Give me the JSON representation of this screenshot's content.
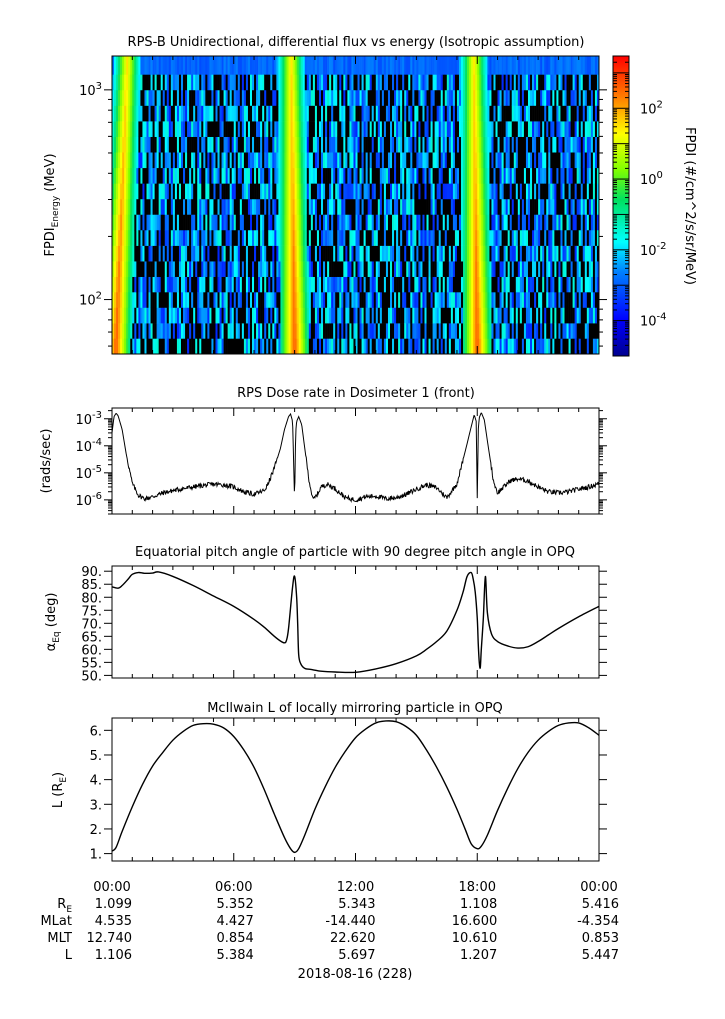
{
  "panels": {
    "spectrogram": {
      "title": "RPS-B  Unidirectional, differential flux vs energy (Isotropic assumption)",
      "ylabel_main": "FPDI",
      "ylabel_sub": "Energy",
      "ylabel_unit": " (MeV)",
      "ytick_labels": [
        {
          "base": "10",
          "exp": "3"
        },
        {
          "base": "10",
          "exp": "2"
        }
      ],
      "colorbar_label": "FPDI (#/cm^2/s/sr/MeV)",
      "colorbar_ticks": [
        {
          "base": "10",
          "exp": "2"
        },
        {
          "base": "10",
          "exp": "0"
        },
        {
          "base": "10",
          "exp": "-2"
        },
        {
          "base": "10",
          "exp": "-4"
        }
      ]
    },
    "dose": {
      "title": "RPS  Dose rate in Dosimeter 1 (front)",
      "ylabel": "(rads/sec)",
      "ytick_labels": [
        {
          "base": "10",
          "exp": "-3"
        },
        {
          "base": "10",
          "exp": "-4"
        },
        {
          "base": "10",
          "exp": "-5"
        },
        {
          "base": "10",
          "exp": "-6"
        }
      ]
    },
    "pitch": {
      "title": "Equatorial pitch angle of particle with 90 degree pitch angle in OPQ",
      "ylabel_main": "α",
      "ylabel_sub": "Eq",
      "ylabel_unit": " (deg)",
      "ytick_labels": [
        "90.",
        "85.",
        "80.",
        "75.",
        "70.",
        "65.",
        "60.",
        "55.",
        "50."
      ]
    },
    "lshell": {
      "title": "McIlwain L of locally mirroring particle in OPQ",
      "ylabel_main": "L (R",
      "ylabel_sub": "E",
      "ylabel_unit": ")",
      "ytick_labels": [
        "6.",
        "5.",
        "4.",
        "3.",
        "2.",
        "1."
      ]
    }
  },
  "ephemeris": {
    "time_labels": [
      "00:00",
      "06:00",
      "12:00",
      "18:00",
      "00:00"
    ],
    "rows": [
      {
        "label": "R",
        "label_sub": "E",
        "values": [
          "1.099",
          "5.352",
          "5.343",
          "1.108",
          "5.416"
        ]
      },
      {
        "label": "MLat",
        "label_sub": "",
        "values": [
          "4.535",
          "4.427",
          "-14.440",
          "16.600",
          "-4.354"
        ]
      },
      {
        "label": "MLT",
        "label_sub": "",
        "values": [
          "12.740",
          "0.854",
          "22.620",
          "10.610",
          "0.853"
        ]
      },
      {
        "label": "L",
        "label_sub": "",
        "values": [
          "1.106",
          "5.384",
          "5.697",
          "1.207",
          "5.447"
        ]
      }
    ],
    "date_label": "2018-08-16 (228)"
  },
  "chart_data": [
    {
      "type": "heatmap",
      "title": "RPS-B  Unidirectional, differential flux vs energy (Isotropic assumption)",
      "xlabel": "",
      "ylabel": "FPDI Energy (MeV)",
      "x_range_hours": [
        0,
        24
      ],
      "ylim": [
        55,
        1450
      ],
      "y_scale": "log",
      "zlabel": "FPDI (#/cm^2/s/sr/MeV)",
      "zlim": [
        1e-05,
        3000
      ],
      "z_scale": "log",
      "colormap": "rainbow",
      "energy_channels": [
        60,
        71,
        84,
        100,
        118,
        140,
        166,
        197,
        234,
        277,
        329,
        390,
        463,
        549,
        651,
        773,
        917,
        1088,
        1290
      ],
      "flux_peaks": [
        {
          "time_hr": 0.2,
          "peak_flux": 500
        },
        {
          "time_hr": 9.0,
          "peak_flux": 500
        },
        {
          "time_hr": 18.0,
          "peak_flux": 500
        }
      ],
      "background_flux": [
        0.0,
        0.03
      ]
    },
    {
      "type": "line",
      "title": "RPS  Dose rate in Dosimeter 1 (front)",
      "xlabel": "",
      "ylabel": "(rads/sec)",
      "y_scale": "log",
      "ylim": [
        3e-07,
        0.0025
      ],
      "x_range_hours": [
        0,
        24
      ],
      "series": [
        {
          "x": [
            0.0,
            0.1,
            0.2,
            0.3,
            0.5,
            0.7,
            1.0,
            1.3,
            1.6,
            2.0,
            2.5,
            3.0,
            3.5,
            4.0,
            4.5,
            5.0,
            5.5,
            6.0,
            6.5,
            7.0,
            7.5,
            7.7,
            8.0,
            8.3,
            8.5,
            8.7,
            8.8,
            8.9,
            9.0,
            9.05,
            9.1,
            9.2,
            9.35,
            9.5,
            9.7,
            9.9,
            10.1,
            10.3,
            10.6,
            11.0,
            11.5,
            12.0,
            12.5,
            13.0,
            13.5,
            14.0,
            14.5,
            15.0,
            15.5,
            16.0,
            16.5,
            17.0,
            17.3,
            17.5,
            17.7,
            17.85,
            17.95,
            18.0,
            18.05,
            18.1,
            18.2,
            18.35,
            18.5,
            18.8,
            19.0,
            19.2,
            19.6,
            20.0,
            20.5,
            21.0,
            21.5,
            22.0,
            22.5,
            23.0,
            23.5,
            24.0
          ],
          "y": [
            0.0003,
            0.0012,
            0.0016,
            0.0013,
            0.0004,
            5e-05,
            4e-06,
            1.5e-06,
            1.1e-06,
            1.3e-06,
            1.8e-06,
            2.2e-06,
            2.6e-06,
            3e-06,
            3.4e-06,
            3.8e-06,
            3.6e-06,
            3e-06,
            2e-06,
            1.6e-06,
            2.2e-06,
            4e-06,
            1.5e-05,
            8e-05,
            0.0004,
            0.0012,
            0.0015,
            0.0008,
            1e-06,
            0.0003,
            0.0008,
            0.0012,
            0.0006,
            8e-05,
            6e-06,
            1e-06,
            1.5e-06,
            3e-06,
            3.8e-06,
            2.6e-06,
            1.2e-06,
            1e-06,
            1.3e-06,
            1.4e-06,
            1.1e-06,
            1.2e-06,
            1.6e-06,
            2.5e-06,
            3.6e-06,
            2.8e-06,
            1.2e-06,
            4e-06,
            3e-05,
            0.00012,
            0.0005,
            0.0014,
            0.0008,
            1e-06,
            0.0004,
            0.0011,
            0.0017,
            0.0009,
            0.00015,
            5e-06,
            1.8e-06,
            2.5e-06,
            5e-06,
            6e-06,
            5e-06,
            3e-06,
            2e-06,
            1.8e-06,
            2e-06,
            2.5e-06,
            3e-06,
            4e-06
          ]
        }
      ]
    },
    {
      "type": "line",
      "title": "Equatorial pitch angle of particle with 90 degree pitch angle in OPQ",
      "xlabel": "",
      "ylabel": "αEq (deg)",
      "ylim": [
        49,
        92
      ],
      "x_range_hours": [
        0,
        24
      ],
      "series": [
        {
          "x": [
            0.0,
            0.3,
            0.5,
            0.8,
            1.0,
            1.3,
            1.6,
            2.0,
            2.3,
            3.0,
            4.0,
            5.0,
            6.0,
            7.0,
            7.5,
            8.0,
            8.3,
            8.5,
            8.6,
            8.7,
            8.9,
            9.0,
            9.1,
            9.15,
            9.2,
            9.3,
            9.5,
            9.8,
            10.0,
            10.3,
            11.0,
            12.0,
            13.0,
            14.0,
            15.0,
            15.5,
            16.0,
            16.5,
            17.0,
            17.3,
            17.5,
            17.7,
            17.8,
            17.9,
            18.0,
            18.05,
            18.1,
            18.15,
            18.2,
            18.3,
            18.4,
            18.5,
            18.7,
            19.0,
            19.5,
            20.0,
            20.5,
            21.0,
            21.5,
            22.0,
            23.0,
            24.0
          ],
          "y": [
            84,
            83.5,
            84.5,
            87,
            88.8,
            89.5,
            89.2,
            89.3,
            89.7,
            88,
            84.5,
            80.5,
            76.5,
            71.5,
            68.5,
            65,
            63.2,
            62.5,
            63.5,
            68,
            84,
            88,
            80,
            70,
            58,
            54.5,
            52.7,
            52.3,
            52.0,
            51.6,
            51.3,
            51.2,
            52.5,
            54.5,
            57.5,
            60,
            63,
            67,
            75,
            82,
            88,
            89.5,
            87,
            82,
            72,
            62,
            55,
            53,
            60,
            72,
            88,
            74,
            66,
            63,
            61.3,
            60.5,
            61,
            63,
            65.5,
            68,
            72.5,
            76.5
          ]
        }
      ]
    },
    {
      "type": "line",
      "title": "McIlwain L of locally mirroring particle in OPQ",
      "xlabel": "",
      "ylabel": "L (RE)",
      "ylim": [
        0.7,
        6.5
      ],
      "x_range_hours": [
        0,
        24
      ],
      "series": [
        {
          "x": [
            0.0,
            0.2,
            0.5,
            1.0,
            1.5,
            2.0,
            2.5,
            3.0,
            3.5,
            4.0,
            4.5,
            5.0,
            5.5,
            6.0,
            6.5,
            7.0,
            7.5,
            8.0,
            8.5,
            8.8,
            9.0,
            9.2,
            9.5,
            10.0,
            10.5,
            11.0,
            11.5,
            12.0,
            12.5,
            13.0,
            13.5,
            14.0,
            14.5,
            15.0,
            15.5,
            16.0,
            16.5,
            17.0,
            17.4,
            17.7,
            18.0,
            18.2,
            18.5,
            19.0,
            19.5,
            20.0,
            20.5,
            21.0,
            21.5,
            22.0,
            22.5,
            23.0,
            23.5,
            24.0
          ],
          "y": [
            1.1,
            1.25,
            1.9,
            2.9,
            3.8,
            4.55,
            5.1,
            5.6,
            5.95,
            6.2,
            6.27,
            6.25,
            6.1,
            5.75,
            5.2,
            4.5,
            3.6,
            2.6,
            1.65,
            1.2,
            1.05,
            1.2,
            1.75,
            2.8,
            3.7,
            4.5,
            5.15,
            5.7,
            6.05,
            6.3,
            6.38,
            6.35,
            6.15,
            5.8,
            5.2,
            4.5,
            3.7,
            2.8,
            2.0,
            1.4,
            1.2,
            1.3,
            1.75,
            2.75,
            3.65,
            4.45,
            5.1,
            5.6,
            5.95,
            6.2,
            6.3,
            6.3,
            6.1,
            5.8
          ]
        }
      ]
    }
  ]
}
